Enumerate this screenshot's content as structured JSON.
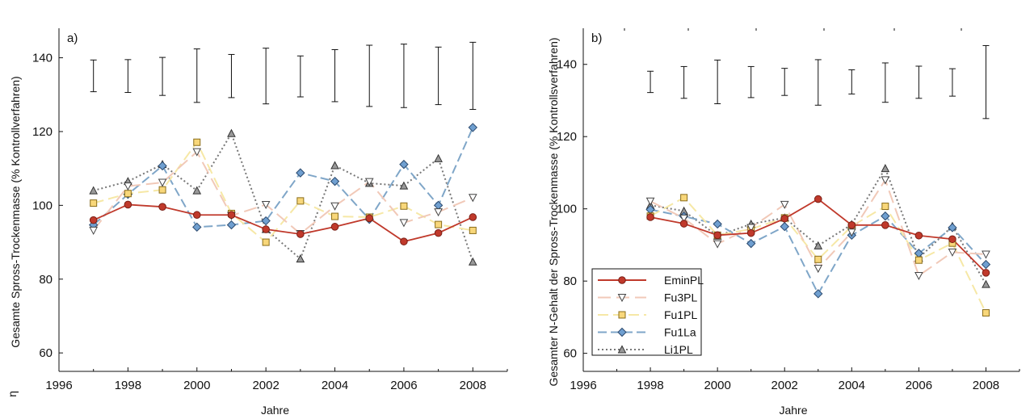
{
  "chart_data": [
    {
      "type": "line",
      "panel_label": "a)",
      "xlabel": "Jahre",
      "ylabel": "Gesamte Spross-Trockenmasse (% Kontrollverfahren)",
      "ylabel_prefix": "η",
      "xlim": [
        1996,
        2009
      ],
      "ylim": [
        55,
        148
      ],
      "xticks": [
        1996,
        1998,
        2000,
        2002,
        2004,
        2006,
        2008
      ],
      "yticks": [
        60,
        80,
        100,
        120,
        140
      ],
      "x": [
        1997,
        1998,
        1999,
        2000,
        2001,
        2002,
        2003,
        2004,
        2005,
        2006,
        2007,
        2008
      ],
      "series": [
        {
          "name": "EminPL",
          "values": [
            96,
            100.2,
            99.6,
            97.4,
            97.4,
            93.5,
            92.2,
            94.2,
            96.5,
            90.2,
            92.5,
            96.8
          ]
        },
        {
          "name": "Fu3PL",
          "values": [
            93.2,
            105.2,
            106.2,
            114.5,
            97.2,
            100.2,
            92.3,
            99.8,
            106.4,
            95.3,
            98.2,
            102.1
          ]
        },
        {
          "name": "Fu1PL",
          "values": [
            100.6,
            103.2,
            104.2,
            117.1,
            97.8,
            90,
            101.2,
            97,
            96.8,
            99.8,
            94.8,
            93.2
          ]
        },
        {
          "name": "Fu1La",
          "values": [
            94.7,
            103,
            110.7,
            94.1,
            94.7,
            95.8,
            108.8,
            106.5,
            96.2,
            111.1,
            100,
            121.1
          ]
        },
        {
          "name": "Li1PL",
          "values": [
            104,
            106.5,
            111.1,
            104,
            119.5,
            93.5,
            85.5,
            110.8,
            106,
            105.3,
            112.7,
            84.7
          ]
        }
      ],
      "error_bars": {
        "x": [
          1997,
          1998,
          1999,
          2000,
          2001,
          2002,
          2003,
          2004,
          2005,
          2006,
          2007,
          2008
        ],
        "low": [
          130.8,
          130.6,
          129.8,
          127.9,
          129.2,
          127.5,
          129.4,
          128.1,
          126.8,
          126.5,
          127.3,
          126
        ],
        "high": [
          139.4,
          139.5,
          140.1,
          142.4,
          140.9,
          142.6,
          140.5,
          142.2,
          143.4,
          143.7,
          142.9,
          144.2
        ]
      }
    },
    {
      "type": "line",
      "panel_label": "b)",
      "xlabel": "Jahre",
      "ylabel": "Gesamter N-Gehalt der Spross-Trockenmasse (% Kontrollsverfahren)",
      "xlim": [
        1996,
        2009
      ],
      "ylim": [
        55,
        150
      ],
      "xticks": [
        1996,
        1998,
        2000,
        2002,
        2004,
        2006,
        2008
      ],
      "yticks": [
        60,
        80,
        100,
        120,
        140
      ],
      "x": [
        1998,
        1999,
        2000,
        2001,
        2002,
        2003,
        2004,
        2005,
        2006,
        2007,
        2008
      ],
      "series": [
        {
          "name": "EminPL",
          "values": [
            97.7,
            95.9,
            92.7,
            93.3,
            97.3,
            102.7,
            95.5,
            95.5,
            92.6,
            91.6,
            82.3
          ]
        },
        {
          "name": "Fu3PL",
          "values": [
            102.1,
            97.4,
            90.3,
            94.8,
            101.2,
            83.5,
            93.5,
            108,
            81.5,
            88,
            87.4
          ]
        },
        {
          "name": "Fu1PL",
          "values": [
            98,
            103.1,
            92.7,
            94.4,
            97.5,
            86,
            95.2,
            100.7,
            85.8,
            90.5,
            71.2
          ]
        },
        {
          "name": "Fu1La",
          "values": [
            99.8,
            97.9,
            95.8,
            90.4,
            95.1,
            76.5,
            92.7,
            98,
            87.7,
            94.8,
            84.6
          ]
        },
        {
          "name": "Li1PL",
          "values": [
            101,
            99.4,
            92.5,
            95.8,
            97.5,
            89.8,
            95.7,
            111.2,
            86.4,
            95.2,
            79.1
          ]
        }
      ],
      "error_bars": {
        "x": [
          1998,
          1999,
          2000,
          2001,
          2002,
          2003,
          2004,
          2005,
          2006,
          2007,
          2008
        ],
        "low": [
          132.2,
          130.6,
          129.1,
          130.8,
          131.4,
          128.7,
          131.8,
          129.5,
          130.6,
          131.2,
          125
        ],
        "high": [
          138.1,
          139.4,
          141.2,
          139.4,
          138.9,
          141.3,
          138.5,
          140.4,
          139.5,
          138.8,
          145.2
        ]
      },
      "legend": "lower-left"
    }
  ],
  "style": {
    "EminPL": {
      "color": "#c0392b",
      "marker_fill": "#c0392b",
      "marker_stroke": "#7a1f16",
      "marker": "circle",
      "dash": ""
    },
    "Fu3PL": {
      "color": "#f1c9b8",
      "marker_fill": "#ffffff",
      "marker_stroke": "#444444",
      "marker": "triangle-down",
      "dash": "16,7"
    },
    "Fu1PL": {
      "color": "#f6e8a6",
      "marker_fill": "#f8d77a",
      "marker_stroke": "#8a6d1a",
      "marker": "square",
      "dash": "13,6"
    },
    "Fu1La": {
      "color": "#7fa6c8",
      "marker_fill": "#6f9fd0",
      "marker_stroke": "#2c4a6e",
      "marker": "diamond",
      "dash": "11,5"
    },
    "Li1PL": {
      "color": "#777777",
      "marker_fill": "#999999",
      "marker_stroke": "#333333",
      "marker": "triangle-up",
      "dash": "2,3"
    }
  }
}
